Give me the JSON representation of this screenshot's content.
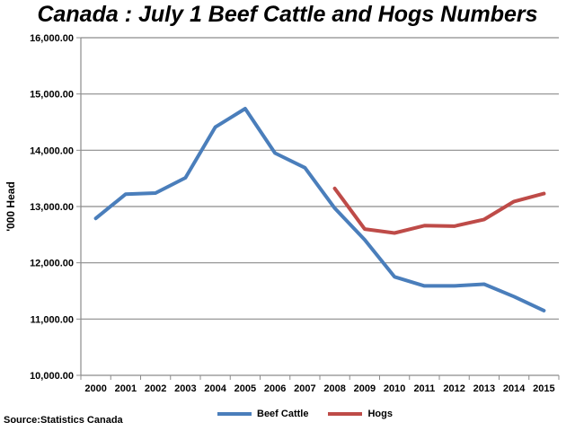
{
  "chart_data": {
    "type": "line",
    "title": "Canada : July 1 Beef Cattle and Hogs Numbers",
    "xlabel": "",
    "ylabel": "'000 Head",
    "categories": [
      "2000",
      "2001",
      "2002",
      "2003",
      "2004",
      "2005",
      "2006",
      "2007",
      "2008",
      "2009",
      "2010",
      "2011",
      "2012",
      "2013",
      "2014",
      "2015"
    ],
    "ylim": [
      10000,
      16000
    ],
    "yticks": [
      "10,000.00",
      "11,000.00",
      "12,000.00",
      "13,000.00",
      "14,000.00",
      "15,000.00",
      "16,000.00"
    ],
    "ytick_values": [
      10000,
      11000,
      12000,
      13000,
      14000,
      15000,
      16000
    ],
    "grid": true,
    "legend_position": "bottom",
    "series": [
      {
        "name": "Beef Cattle",
        "color": "#4a7ebb",
        "values": [
          12790,
          13220,
          13240,
          13510,
          14410,
          14740,
          13950,
          13690,
          12970,
          12410,
          11750,
          11590,
          11590,
          11620,
          11400,
          11150
        ]
      },
      {
        "name": "Hogs",
        "color": "#be4b48",
        "values": [
          null,
          null,
          null,
          null,
          null,
          null,
          null,
          null,
          13320,
          12600,
          12530,
          12660,
          12650,
          12770,
          13090,
          13230
        ]
      }
    ]
  },
  "source": "Source:Statistics Canada"
}
